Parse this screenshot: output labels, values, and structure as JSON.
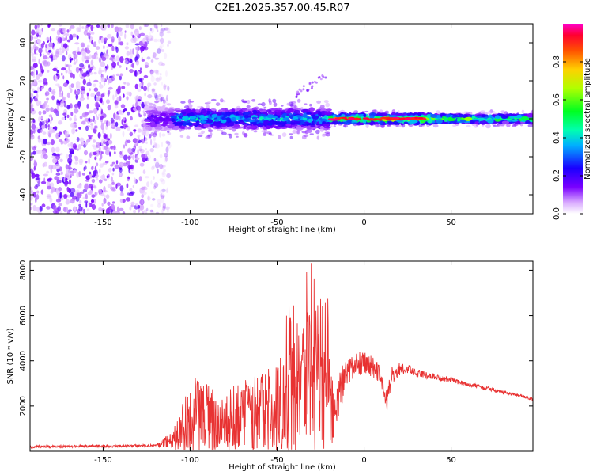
{
  "title": "C2E1.2025.357.00.45.R07",
  "chart_data": [
    {
      "type": "heatmap",
      "name": "spectrogram",
      "xlabel": "Height of straight line (km)",
      "ylabel": "Frequency (Hz)",
      "xlim": [
        -192,
        97
      ],
      "ylim": [
        -50,
        50
      ],
      "xticks": [
        -150,
        -100,
        -50,
        0,
        50
      ],
      "xtick_labels": [
        "-150",
        "-100",
        "-50",
        "0",
        "50"
      ],
      "yticks": [
        -40,
        -20,
        0,
        20,
        40
      ],
      "ytick_labels": [
        "-40",
        "-20",
        "0",
        "20",
        "40"
      ],
      "colorbar": {
        "label": "Normalized spectral amplitude",
        "range": [
          0,
          1
        ],
        "ticks": [
          0.0,
          0.2,
          0.4,
          0.6,
          0.8
        ],
        "tick_labels": [
          "0.0",
          "0.2",
          "0.4",
          "0.6",
          "0.8"
        ],
        "colormap": "gist_rainbow_r"
      },
      "band": {
        "noise_region_x": [
          -192,
          -112
        ],
        "signal_center_frequency": 0,
        "signal_start_x": -125,
        "max_amplitude_x": [
          -20,
          35
        ]
      }
    },
    {
      "type": "line",
      "name": "snr",
      "xlabel": "Height of straight line (km)",
      "ylabel": "SNR (10 * v/v)",
      "xlim": [
        -192,
        97
      ],
      "ylim": [
        0,
        8400
      ],
      "xticks": [
        -150,
        -100,
        -50,
        0,
        50
      ],
      "xtick_labels": [
        "-150",
        "-100",
        "-50",
        "0",
        "50"
      ],
      "yticks": [
        2000,
        4000,
        6000,
        8000
      ],
      "ytick_labels": [
        "2000",
        "4000",
        "6000",
        "8000"
      ],
      "line_color": "#e83232",
      "envelope": {
        "x": [
          -192,
          -120,
          -110,
          -103,
          -98,
          -90,
          -80,
          -70,
          -60,
          -50,
          -45,
          -40,
          -35,
          -32,
          -30,
          -25,
          -20,
          -17,
          -10,
          0,
          5,
          10,
          13,
          16,
          20,
          25,
          30,
          40,
          50,
          60,
          70,
          80,
          90,
          97
        ],
        "center": [
          200,
          250,
          500,
          1100,
          1600,
          1500,
          1400,
          1600,
          1700,
          2000,
          2200,
          2400,
          2700,
          3000,
          2800,
          2600,
          2300,
          1800,
          3500,
          4000,
          3700,
          3300,
          2200,
          3400,
          3600,
          3650,
          3450,
          3300,
          3150,
          2950,
          2800,
          2600,
          2450,
          2300
        ],
        "spread": [
          60,
          60,
          400,
          1500,
          1700,
          1500,
          1400,
          1500,
          1700,
          2000,
          2200,
          2400,
          2800,
          3500,
          3000,
          2600,
          2200,
          1500,
          600,
          500,
          450,
          450,
          500,
          400,
          300,
          220,
          180,
          140,
          120,
          100,
          90,
          80,
          70,
          60
        ]
      }
    }
  ],
  "colors": {
    "line": "#e83232",
    "background": "#ffffff",
    "axes": "#000000"
  }
}
